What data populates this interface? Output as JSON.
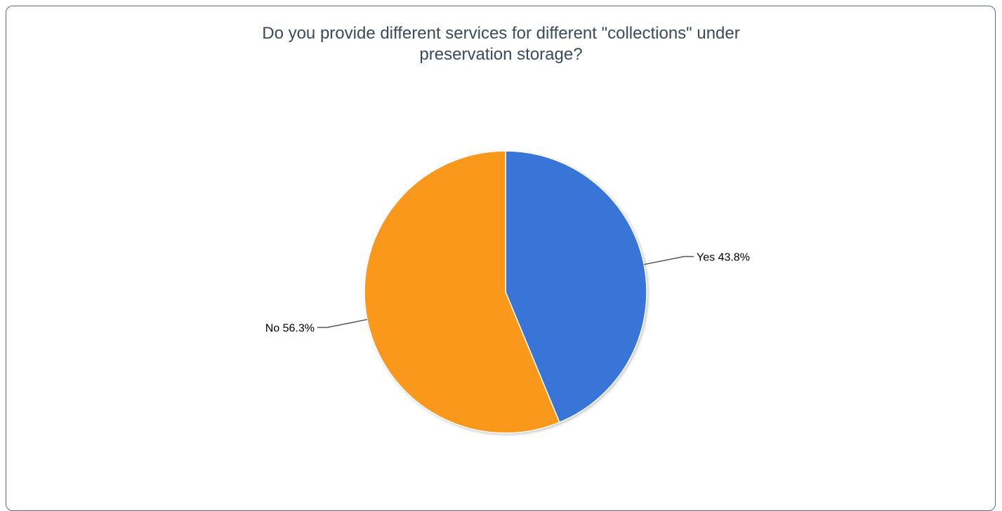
{
  "chart_data": {
    "type": "pie",
    "title_lines": [
      "Do you provide different services for different \"collections\" under",
      "preservation storage?"
    ],
    "slices": [
      {
        "label": "Yes",
        "value": 43.8,
        "value_text": "43.8%",
        "color": "#3875d7"
      },
      {
        "label": "No",
        "value": 56.3,
        "value_text": "56.3%",
        "color": "#fa981f"
      }
    ],
    "legend": "none",
    "start": "top",
    "direction": "clockwise"
  }
}
